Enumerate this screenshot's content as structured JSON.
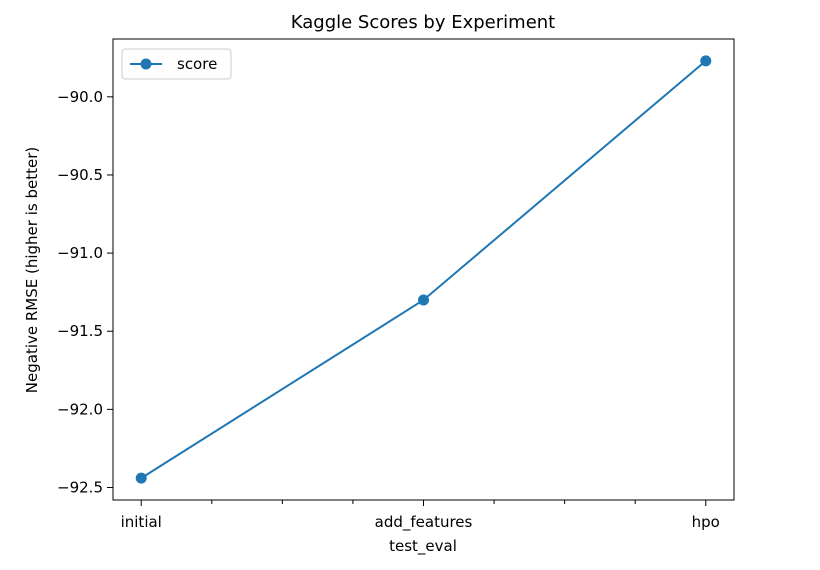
{
  "chart_data": {
    "type": "line",
    "title": "Kaggle Scores by Experiment",
    "xlabel": "test_eval",
    "ylabel": "Negative RMSE (higher is better)",
    "categories": [
      "initial",
      "add_features",
      "hpo"
    ],
    "series": [
      {
        "name": "score",
        "values": [
          -92.44,
          -91.3,
          -89.77
        ],
        "color": "#1f77b4"
      }
    ],
    "ylim": [
      -92.58,
      -89.63
    ],
    "yticks": [
      -92.5,
      -92.0,
      -91.5,
      -91.0,
      -90.5,
      -90.0
    ],
    "ytick_labels": [
      "−92.5",
      "−92.0",
      "−91.5",
      "−91.0",
      "−90.5",
      "−90.0"
    ],
    "x_minor_ticks_between": 3,
    "grid": false,
    "legend": "top-left"
  }
}
